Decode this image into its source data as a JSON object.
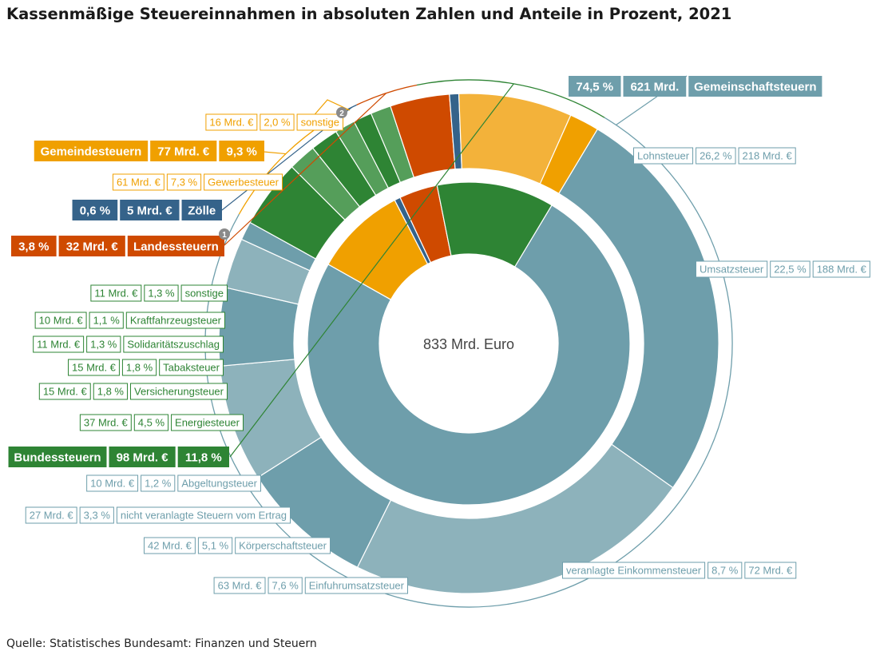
{
  "title": "Kassenmäßige Steuereinnahmen in absoluten Zahlen und Anteile in Prozent, 2021",
  "source": "Quelle: Statistisches Bundesamt: Finanzen und Steuern",
  "colors": {
    "gemein_outer_a": "#6e9eab",
    "gemein_outer_b": "#8db2bb",
    "gemein_inner": "#6e9eab",
    "gemeinde_outer": "#f3b23a",
    "gemeinde_inner": "#f0a000",
    "zoelle": "#35638a",
    "landes": "#cf4a00",
    "bund_a": "#2e8434",
    "bund_b": "#559e5a"
  },
  "chart_data": {
    "type": "pie",
    "center_label": "833 Mrd. Euro",
    "total": 833,
    "inner_ring": [
      {
        "key": "gemein",
        "name": "Gemeinschaftsteuern",
        "value": 621,
        "share": "74,5 %",
        "value_label": "621 Mrd.",
        "color": "#6e9eab"
      },
      {
        "key": "gemeinde",
        "name": "Gemeindesteuern",
        "value": 77,
        "share": "9,3 %",
        "value_label": "77 Mrd. €",
        "color": "#f0a000"
      },
      {
        "key": "zoelle",
        "name": "Zölle",
        "value": 5,
        "share": "0,6 %",
        "value_label": "5 Mrd. €",
        "color": "#35638a"
      },
      {
        "key": "landes",
        "name": "Landessteuern",
        "value": 32,
        "share": "3,8 %",
        "value_label": "32 Mrd. €",
        "color": "#cf4a00"
      },
      {
        "key": "bund",
        "name": "Bundessteuern",
        "value": 98,
        "share": "11,8 %",
        "value_label": "98 Mrd. €",
        "color": "#2e8434"
      }
    ],
    "outer_ring": [
      {
        "group": "gemein",
        "name": "Lohnsteuer",
        "value": 218,
        "share": "26,2 %",
        "value_label": "218 Mrd. €",
        "color": "#6e9eab"
      },
      {
        "group": "gemein",
        "name": "Umsatzsteuer",
        "value": 188,
        "share": "22,5 %",
        "value_label": "188 Mrd. €",
        "color": "#8db2bb"
      },
      {
        "group": "gemein",
        "name": "veranlagte Einkommensteuer",
        "value": 72,
        "share": "8,7 %",
        "value_label": "72 Mrd. €",
        "color": "#6e9eab"
      },
      {
        "group": "gemein",
        "name": "Einfuhrumsatzsteuer",
        "value": 63,
        "share": "7,6 %",
        "value_label": "63 Mrd. €",
        "color": "#8db2bb"
      },
      {
        "group": "gemein",
        "name": "Körperschaftsteuer",
        "value": 42,
        "share": "5,1 %",
        "value_label": "42 Mrd. €",
        "color": "#6e9eab"
      },
      {
        "group": "gemein",
        "name": "nicht veranlagte Steuern vom Ertrag",
        "value": 27,
        "share": "3,3 %",
        "value_label": "27 Mrd. €",
        "color": "#8db2bb"
      },
      {
        "group": "gemein",
        "name": "Abgeltungsteuer",
        "value": 10,
        "share": "1,2 %",
        "value_label": "10 Mrd. €",
        "color": "#6e9eab"
      },
      {
        "group": "bund",
        "name": "Energiesteuer",
        "value": 37,
        "share": "4,5 %",
        "value_label": "37 Mrd. €",
        "color": "#2e8434"
      },
      {
        "group": "bund",
        "name": "Versicherungsteuer",
        "value": 15,
        "share": "1,8 %",
        "value_label": "15 Mrd. €",
        "color": "#559e5a"
      },
      {
        "group": "bund",
        "name": "Tabaksteuer",
        "value": 15,
        "share": "1,8 %",
        "value_label": "15 Mrd. €",
        "color": "#2e8434"
      },
      {
        "group": "bund",
        "name": "Solidaritätszuschlag",
        "value": 11,
        "share": "1,3 %",
        "value_label": "11 Mrd. €",
        "color": "#559e5a"
      },
      {
        "group": "bund",
        "name": "Kraftfahrzeugsteuer",
        "value": 10,
        "share": "1,1 %",
        "value_label": "10 Mrd. €",
        "color": "#2e8434"
      },
      {
        "group": "bund",
        "name": "sonstige",
        "value": 11,
        "share": "1,3 %",
        "value_label": "11 Mrd. €",
        "color": "#559e5a"
      },
      {
        "group": "landes",
        "name": "Landessteuern",
        "value": 32,
        "share": "3,8 %",
        "value_label": "32 Mrd. €",
        "color": "#cf4a00"
      },
      {
        "group": "zoelle",
        "name": "Zölle",
        "value": 5,
        "share": "0,6 %",
        "value_label": "5 Mrd. €",
        "color": "#35638a"
      },
      {
        "group": "gemeinde",
        "name": "Gewerbesteuer",
        "value": 61,
        "share": "7,3 %",
        "value_label": "61 Mrd. €",
        "color": "#f3b23a"
      },
      {
        "group": "gemeinde",
        "name": "sonstige",
        "value": 16,
        "share": "2,0 %",
        "value_label": "16 Mrd. €",
        "color": "#f0a000"
      }
    ],
    "footnote_markers": [
      "1",
      "2"
    ]
  }
}
